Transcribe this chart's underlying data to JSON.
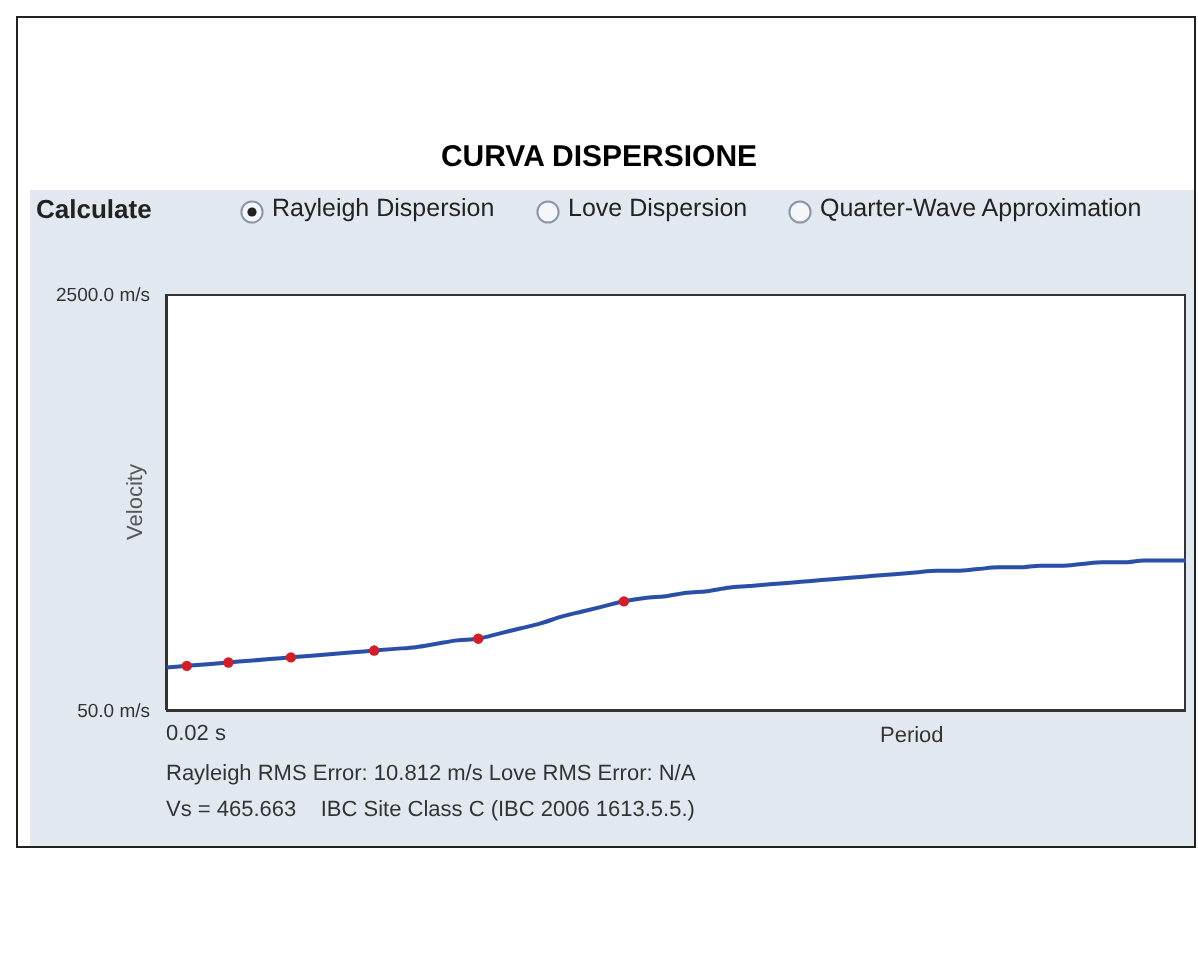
{
  "chart_data": {
    "type": "line",
    "title": "CURVA DISPERSIONE",
    "ylabel": "Velocity",
    "xlabel": "Period",
    "annotations": [
      "Calculate",
      "Rayleigh Dispersion",
      "Love Dispersion",
      "Quarter-Wave Approximation",
      "0.02 s",
      "Rayleigh RMS Error: 10.812 m/s Love RMS Error: N/A",
      "Vs = 465.663    IBC Site Class C (IBC 2006 1613.5.5.)"
    ],
    "categories": [
      null,
      null,
      null,
      null,
      null,
      null,
      null,
      null,
      null,
      null,
      null,
      null,
      null,
      null,
      null,
      null,
      null,
      null,
      null,
      null,
      null,
      null,
      null,
      null,
      null,
      null,
      null,
      null,
      null,
      null,
      null,
      null,
      null,
      null,
      null,
      null,
      null,
      null,
      null,
      null,
      null,
      null,
      null,
      null,
      null,
      null,
      null,
      null,
      null,
      null
    ],
    "series": [
      {
        "color": "#2b4fa6",
        "marker": "none",
        "values": [
          300,
          310,
          320,
          330,
          340,
          350,
          360,
          370,
          380,
          390,
          400,
          410,
          420,
          440,
          460,
          470,
          500,
          530,
          560,
          600,
          630,
          660,
          690,
          710,
          720,
          740,
          750,
          770,
          780,
          790,
          800,
          810,
          820,
          830,
          840,
          850,
          860,
          870,
          870,
          880,
          890,
          890,
          900,
          900,
          910,
          920,
          920,
          930,
          930,
          930
        ]
      },
      {
        "type": "scatter",
        "color": "#d01f2b",
        "marker": "circle",
        "values": [
          null,
          310,
          null,
          330,
          null,
          null,
          360,
          null,
          null,
          null,
          400,
          null,
          null,
          null,
          null,
          470,
          null,
          null,
          null,
          null,
          null,
          null,
          690,
          null,
          null,
          null,
          null,
          null,
          null,
          null,
          null,
          null,
          null,
          null,
          null,
          null,
          null,
          null,
          null,
          null,
          null,
          null,
          null,
          null,
          null,
          null,
          null,
          null,
          null,
          null
        ]
      }
    ],
    "ylim": [
      50,
      2500
    ],
    "yticks": [
      {
        "value": 50,
        "label": "50.0 m/s"
      },
      {
        "value": 2500,
        "label": "2500.0 m/s"
      }
    ],
    "grid": false
  }
}
